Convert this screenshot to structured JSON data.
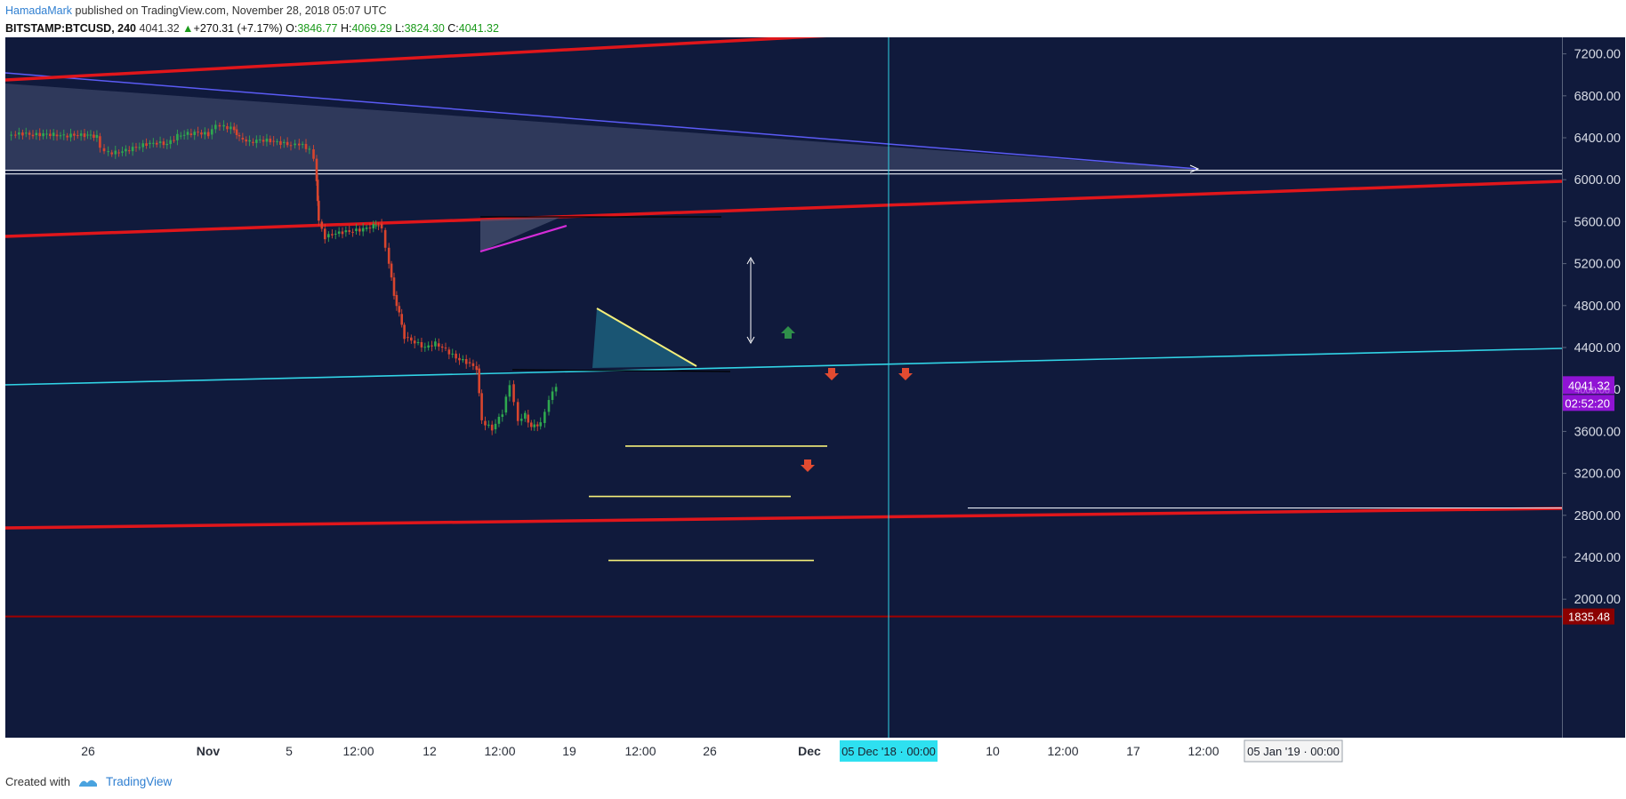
{
  "header": {
    "author": "HamadaMark",
    "published": "published on TradingView.com, November 28, 2018 05:07 UTC",
    "symbol": "BITSTAMP:BTCUSD, 240",
    "last": "4041.32",
    "change": "+270.31 (+7.17%)",
    "open_label": "O:",
    "open": "3846.77",
    "high_label": "H:",
    "high": "4069.29",
    "low_label": "L:",
    "low": "3824.30",
    "close_label": "C:",
    "close": "4041.32"
  },
  "footer": {
    "created_with": "Created with",
    "brand": "TradingView"
  },
  "colors": {
    "background": "#101a3c",
    "trend_red": "#e0161b",
    "support_cyan": "#31d4e6",
    "level_yellow": "#f5ef7a",
    "triangle_magenta": "#d42cd8",
    "blue_trend": "#5b5bf5",
    "up_candle": "#2fa84f",
    "down_candle": "#d8452e",
    "price_tag": "#9013d4",
    "low_tag": "#8b0000",
    "arrow_green": "#2f8f4a",
    "arrow_red": "#e24b31"
  },
  "chart_data": {
    "type": "line",
    "title": "",
    "symbol": "BITSTAMP:BTCUSD",
    "interval": "240",
    "xlabel": "",
    "ylabel": "",
    "x_ticks": [
      "26",
      "Nov",
      "5",
      "12:00",
      "12",
      "12:00",
      "19",
      "12:00",
      "26",
      "Dec",
      "05 Dec '18 · 00:00",
      "10",
      "12:00",
      "17",
      "12:00",
      "05 Jan '19 · 00:00"
    ],
    "y_ticks": [
      "7200.00",
      "6800.00",
      "6400.00",
      "6000.00",
      "5600.00",
      "5200.00",
      "4800.00",
      "4400.00",
      "4000.00",
      "3600.00",
      "3200.00",
      "2800.00",
      "2400.00",
      "2000.00"
    ],
    "ylim": [
      1720,
      7440
    ],
    "price_path": [
      [
        0,
        6420
      ],
      [
        0.8,
        6430
      ],
      [
        1.5,
        6440
      ],
      [
        2.5,
        6425
      ],
      [
        3.5,
        6435
      ],
      [
        4.5,
        6430
      ],
      [
        5.5,
        6420
      ],
      [
        6.5,
        6425
      ],
      [
        7.5,
        6425
      ],
      [
        8.7,
        6415
      ],
      [
        9.0,
        6300
      ],
      [
        9.8,
        6260
      ],
      [
        10.5,
        6260
      ],
      [
        11.5,
        6280
      ],
      [
        12.5,
        6310
      ],
      [
        13.5,
        6340
      ],
      [
        14.5,
        6350
      ],
      [
        15.5,
        6340
      ],
      [
        16.5,
        6420
      ],
      [
        17.5,
        6440
      ],
      [
        18.5,
        6450
      ],
      [
        19.5,
        6430
      ],
      [
        20.2,
        6520
      ],
      [
        21.0,
        6510
      ],
      [
        22.0,
        6480
      ],
      [
        22.5,
        6400
      ],
      [
        23.5,
        6360
      ],
      [
        24.5,
        6380
      ],
      [
        25.5,
        6370
      ],
      [
        26.5,
        6350
      ],
      [
        27.5,
        6330
      ],
      [
        28.3,
        6340
      ],
      [
        29.3,
        6290
      ],
      [
        29.7,
        6200
      ],
      [
        30.0,
        6000
      ],
      [
        30.1,
        5800
      ],
      [
        30.2,
        5600
      ],
      [
        30.8,
        5450
      ],
      [
        31.5,
        5480
      ],
      [
        32.5,
        5500
      ],
      [
        33.5,
        5510
      ],
      [
        34.5,
        5530
      ],
      [
        35.5,
        5560
      ],
      [
        36.0,
        5580
      ],
      [
        36.3,
        5520
      ],
      [
        37.0,
        5200
      ],
      [
        37.5,
        4900
      ],
      [
        38.0,
        4720
      ],
      [
        38.5,
        4500
      ],
      [
        39.5,
        4450
      ],
      [
        40.5,
        4400
      ],
      [
        41.5,
        4440
      ],
      [
        42.5,
        4380
      ],
      [
        43.5,
        4300
      ],
      [
        44.5,
        4260
      ],
      [
        45.5,
        4200
      ],
      [
        46.0,
        3700
      ],
      [
        47.0,
        3620
      ],
      [
        48.0,
        3780
      ],
      [
        48.7,
        4050
      ],
      [
        49.5,
        3700
      ],
      [
        50.2,
        3760
      ],
      [
        50.8,
        3640
      ],
      [
        51.7,
        3680
      ],
      [
        52.5,
        3900
      ],
      [
        53.2,
        4041
      ]
    ],
    "annotations": {
      "last_price_tag": "4041.32",
      "countdown": "02:52:20",
      "hidden_tag": "4000.00",
      "low_line_tag": "1835.48",
      "low_line_price": 1835.48,
      "vertical_marker_date": "05 Dec '18 · 00:00",
      "yellow_levels": [
        3460,
        2980,
        2370
      ],
      "short_white_level": 2870,
      "white_double_lines": [
        6090,
        6055
      ]
    }
  }
}
